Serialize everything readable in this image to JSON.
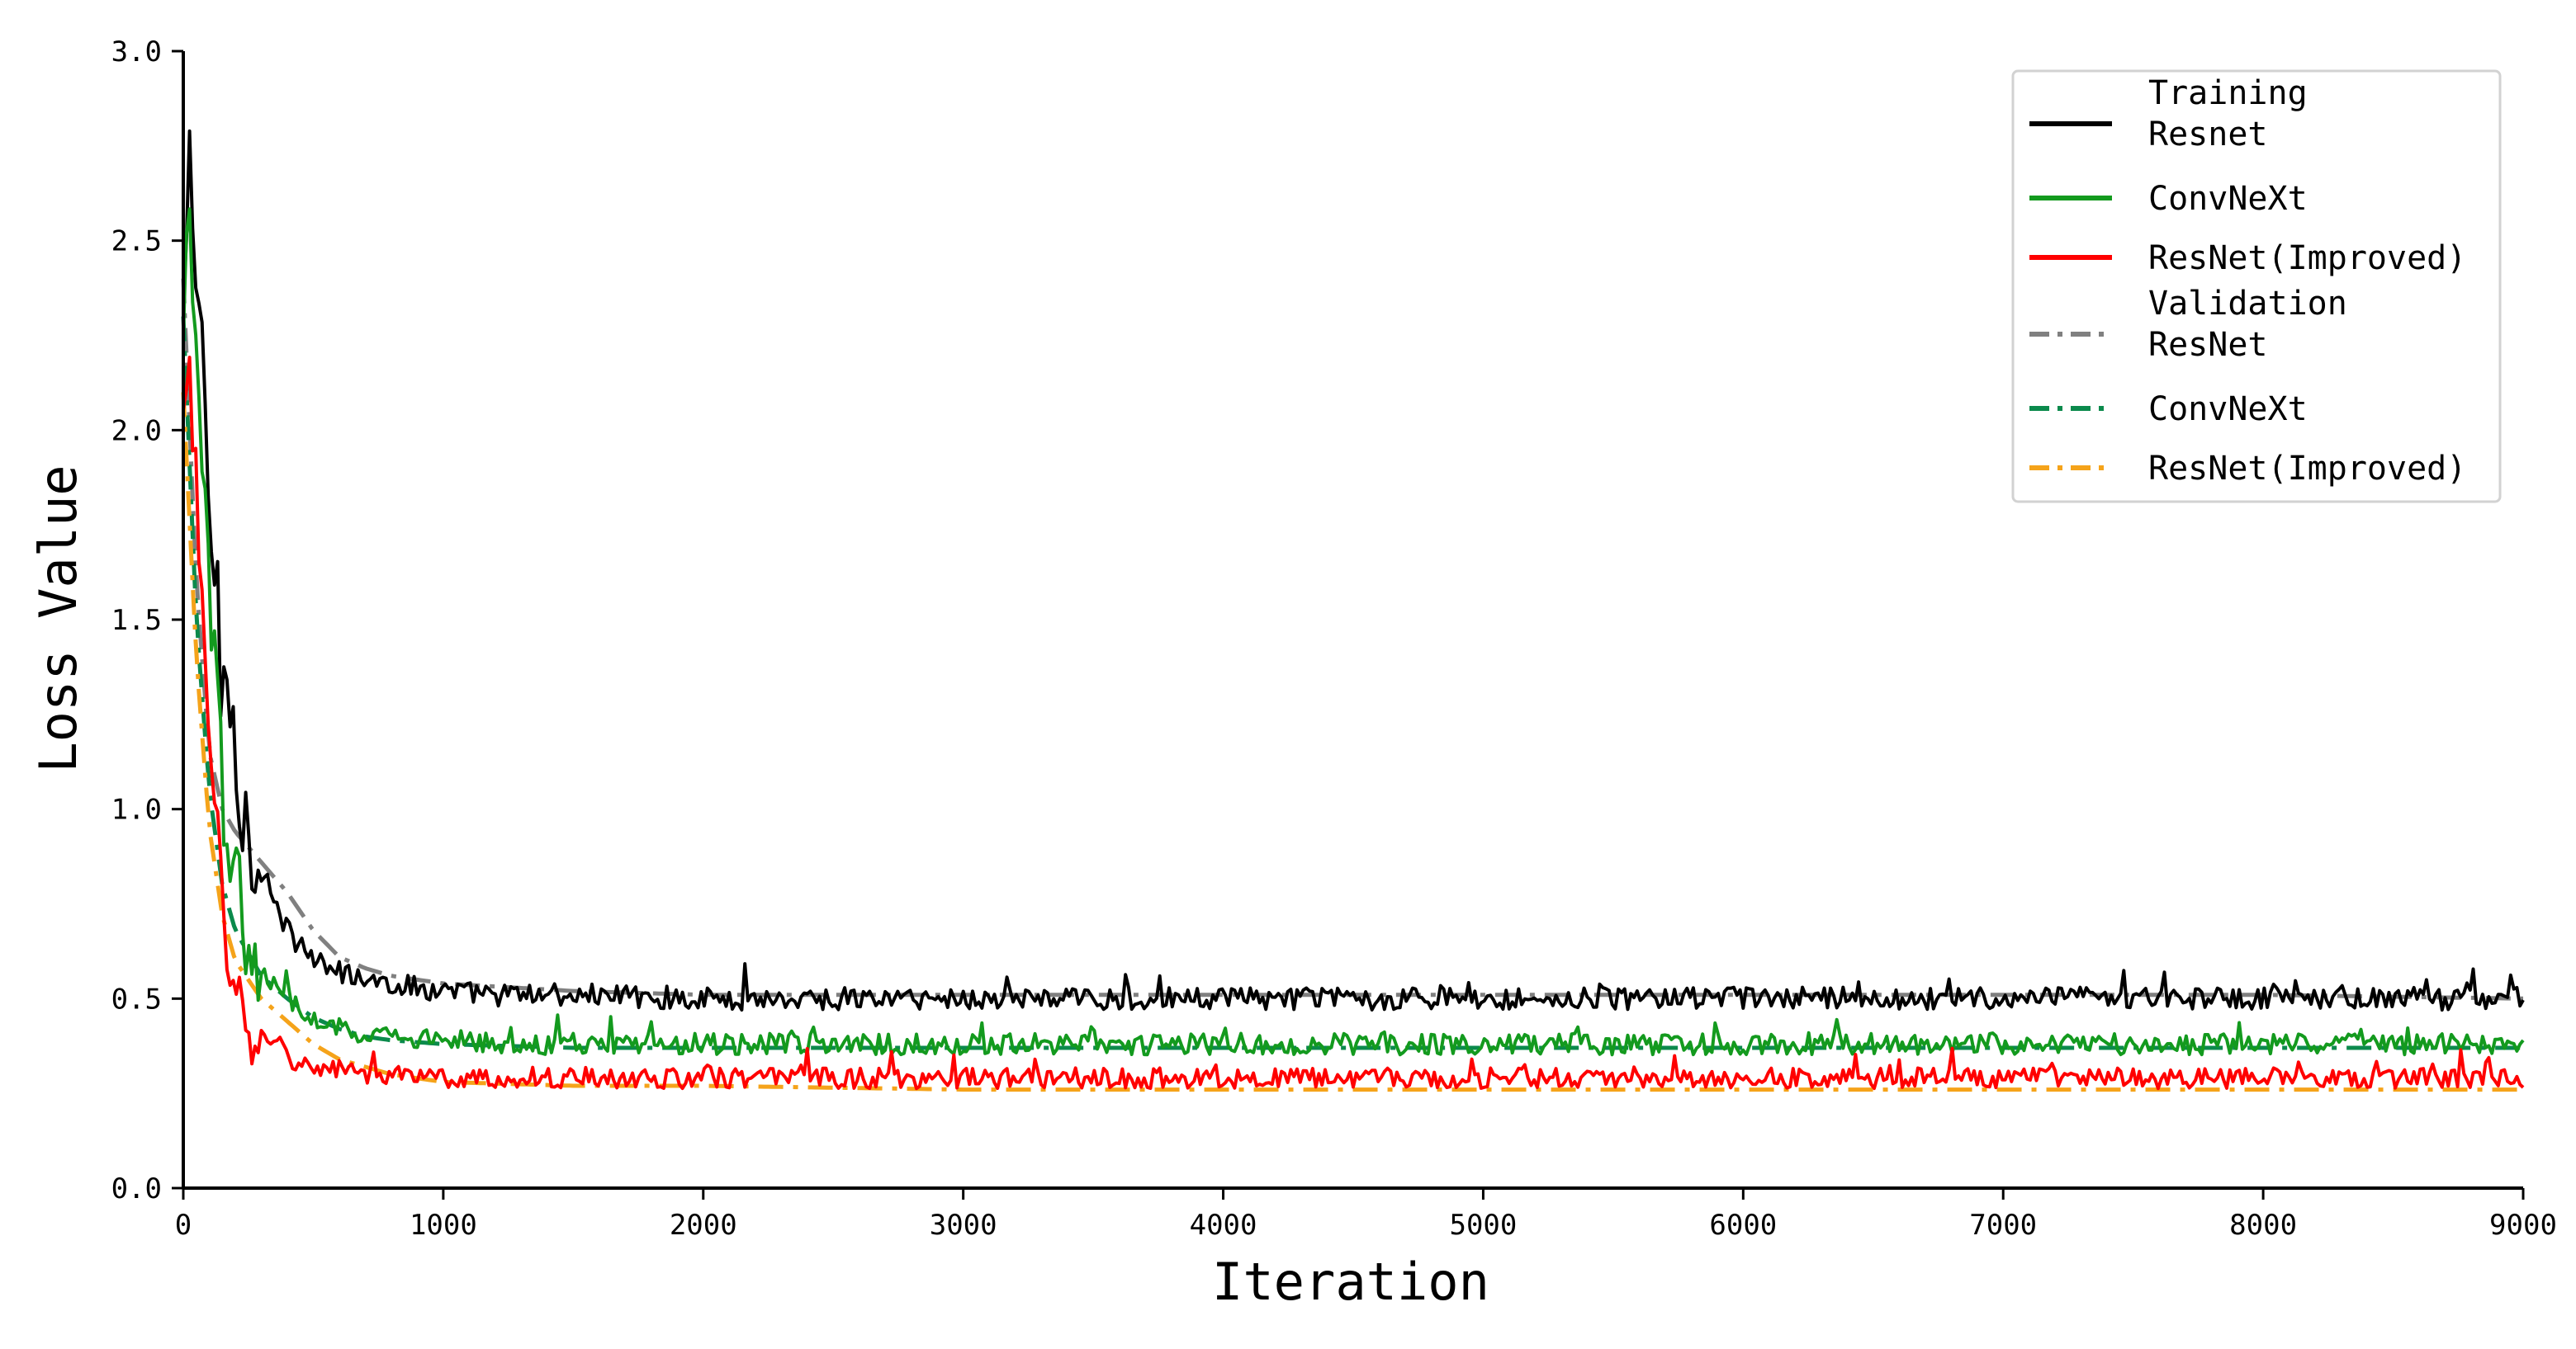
{
  "chart_data": {
    "type": "line",
    "xlabel": "Iteration",
    "ylabel": "Loss Value",
    "xlim": [
      0,
      9000
    ],
    "ylim": [
      0,
      3.0
    ],
    "x_ticks": [
      "0",
      "1000",
      "2000",
      "3000",
      "4000",
      "5000",
      "6000",
      "7000",
      "8000",
      "9000"
    ],
    "y_ticks": [
      "0.0",
      "0.5",
      "1.0",
      "1.5",
      "2.0",
      "2.5",
      "3.0"
    ],
    "grid": false,
    "legend_position": "top-right",
    "legend": {
      "group_training": "Training",
      "group_validation": "Validation",
      "entries": [
        {
          "group": "Training",
          "label": "Resnet",
          "color": "#000000",
          "dash": "solid"
        },
        {
          "group": "",
          "label": "ConvNeXt",
          "color": "#139a1e",
          "dash": "solid"
        },
        {
          "group": "",
          "label": "ResNet(Improved)",
          "color": "#ff0000",
          "dash": "solid"
        },
        {
          "group": "Validation",
          "label": "ResNet",
          "color": "#808080",
          "dash": "dashdot"
        },
        {
          "group": "",
          "label": "ConvNeXt",
          "color": "#0b8a4c",
          "dash": "dashdot"
        },
        {
          "group": "",
          "label": "ResNet(Improved)",
          "color": "#f5a31a",
          "dash": "dashdot"
        }
      ]
    },
    "series": [
      {
        "label": "Training Resnet",
        "color": "#000000",
        "dash": "solid",
        "noisy": true,
        "noise_amplitude": 0.03,
        "x": [
          0,
          25,
          50,
          75,
          100,
          125,
          150,
          175,
          200,
          250,
          300,
          350,
          400,
          450,
          500,
          600,
          700,
          800,
          900,
          1000,
          1200,
          1500,
          2000,
          2500,
          3000,
          4000,
          5000,
          6000,
          7000,
          8000,
          9000
        ],
        "y": [
          2.3,
          2.7,
          2.4,
          2.2,
          1.75,
          1.6,
          1.3,
          1.38,
          1.1,
          0.95,
          0.82,
          0.75,
          0.68,
          0.64,
          0.6,
          0.57,
          0.55,
          0.54,
          0.53,
          0.52,
          0.51,
          0.51,
          0.5,
          0.5,
          0.5,
          0.5,
          0.5,
          0.5,
          0.5,
          0.5,
          0.5
        ]
      },
      {
        "label": "Training ConvNeXt",
        "color": "#139a1e",
        "dash": "solid",
        "noisy": true,
        "noise_amplitude": 0.028,
        "x": [
          0,
          25,
          50,
          75,
          100,
          125,
          150,
          175,
          200,
          250,
          300,
          350,
          400,
          450,
          500,
          600,
          700,
          800,
          900,
          1000,
          1200,
          1500,
          2000,
          2500,
          3000,
          4000,
          5000,
          6000,
          7000,
          8000,
          9000
        ],
        "y": [
          2.2,
          2.6,
          2.2,
          1.9,
          1.5,
          1.3,
          1.05,
          0.92,
          0.8,
          0.68,
          0.58,
          0.53,
          0.5,
          0.47,
          0.45,
          0.42,
          0.41,
          0.4,
          0.39,
          0.39,
          0.38,
          0.38,
          0.38,
          0.38,
          0.38,
          0.38,
          0.38,
          0.38,
          0.38,
          0.38,
          0.38
        ]
      },
      {
        "label": "Training ResNet(Improved)",
        "color": "#ff0000",
        "dash": "solid",
        "noisy": true,
        "noise_amplitude": 0.027,
        "x": [
          0,
          25,
          50,
          75,
          100,
          125,
          150,
          175,
          200,
          250,
          300,
          350,
          400,
          450,
          500,
          600,
          700,
          800,
          900,
          1000,
          1200,
          1500,
          2000,
          2500,
          3000,
          4000,
          5000,
          6000,
          7000,
          8000,
          9000
        ],
        "y": [
          2.0,
          2.3,
          1.8,
          1.4,
          1.2,
          0.95,
          0.75,
          0.62,
          0.55,
          0.45,
          0.4,
          0.37,
          0.35,
          0.33,
          0.32,
          0.31,
          0.3,
          0.3,
          0.29,
          0.29,
          0.29,
          0.29,
          0.29,
          0.29,
          0.29,
          0.29,
          0.29,
          0.29,
          0.29,
          0.29,
          0.29
        ]
      },
      {
        "label": "Validation ResNet",
        "color": "#808080",
        "dash": "dashdot",
        "noisy": false,
        "x": [
          0,
          50,
          100,
          150,
          200,
          300,
          400,
          500,
          600,
          700,
          800,
          1000,
          1500,
          2000,
          3000,
          4000,
          5000,
          6000,
          7000,
          8000,
          9000
        ],
        "y": [
          2.4,
          1.6,
          1.15,
          1.0,
          0.94,
          0.86,
          0.78,
          0.68,
          0.61,
          0.58,
          0.56,
          0.54,
          0.52,
          0.51,
          0.51,
          0.51,
          0.51,
          0.51,
          0.51,
          0.51,
          0.5
        ]
      },
      {
        "label": "Validation ConvNeXt",
        "color": "#0b8a4c",
        "dash": "dashdot",
        "noisy": false,
        "x": [
          0,
          50,
          100,
          150,
          200,
          300,
          400,
          500,
          600,
          700,
          800,
          1000,
          1500,
          2000,
          3000,
          4000,
          5000,
          6000,
          7000,
          8000,
          9000
        ],
        "y": [
          2.3,
          1.5,
          1.05,
          0.8,
          0.68,
          0.56,
          0.5,
          0.45,
          0.42,
          0.4,
          0.39,
          0.38,
          0.37,
          0.37,
          0.37,
          0.37,
          0.37,
          0.37,
          0.37,
          0.37,
          0.37
        ]
      },
      {
        "label": "Validation ResNet(Improved)",
        "color": "#f5a31a",
        "dash": "dashdot",
        "noisy": false,
        "x": [
          0,
          50,
          100,
          150,
          200,
          300,
          400,
          500,
          600,
          700,
          800,
          1000,
          1500,
          2000,
          3000,
          4000,
          5000,
          6000,
          7000,
          8000,
          9000
        ],
        "y": [
          2.1,
          1.4,
          0.95,
          0.72,
          0.6,
          0.5,
          0.44,
          0.38,
          0.34,
          0.32,
          0.3,
          0.28,
          0.27,
          0.27,
          0.26,
          0.26,
          0.26,
          0.26,
          0.26,
          0.26,
          0.26
        ]
      }
    ]
  }
}
